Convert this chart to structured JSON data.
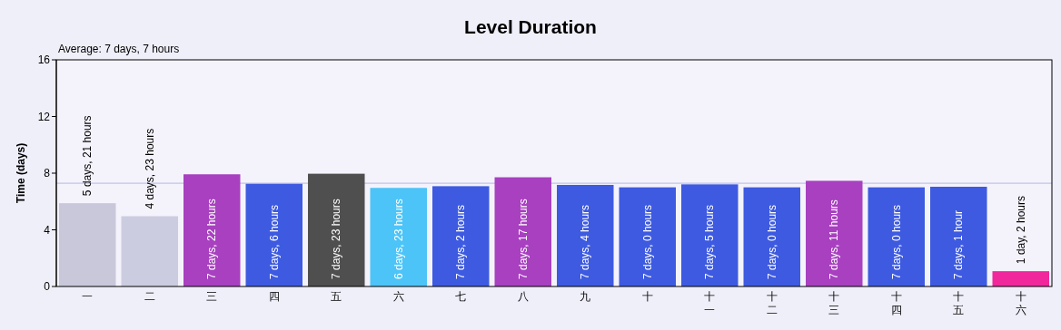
{
  "chart_data": {
    "type": "bar",
    "title": "Level Duration",
    "ylabel": "Time (days)",
    "categories": [
      "一",
      "二",
      "三",
      "四",
      "五",
      "六",
      "七",
      "八",
      "九",
      "十",
      "十一",
      "十二",
      "十三",
      "十四",
      "十五",
      "十六"
    ],
    "values": [
      5.88,
      4.96,
      7.92,
      7.25,
      7.96,
      6.96,
      7.08,
      7.71,
      7.17,
      7.0,
      7.21,
      7.0,
      7.46,
      7.0,
      7.04,
      1.08
    ],
    "colors": [
      "#c8c8da",
      "#cccce0",
      "#a840c0",
      "#3d5ae0",
      "#4f4f4f",
      "#4cc4f8",
      "#3d5ae0",
      "#a840c0",
      "#3d5ae0",
      "#3d5ae0",
      "#3d5ae0",
      "#3d5ae0",
      "#a840c0",
      "#3d5ae0",
      "#3d5ae0",
      "#f0289c"
    ],
    "ylim": [
      0,
      16
    ],
    "yticks": [
      0,
      4,
      8,
      12,
      16
    ],
    "grid": false,
    "ref_lines": [
      {
        "axis": "y",
        "value": 7.29,
        "color": "#b8b8e0"
      }
    ],
    "annotations": [
      "Average: 7 days, 7 hours",
      {
        "text": "5 days, 21 hours",
        "x": "一",
        "y": 5.88
      },
      {
        "text": "4 days, 23 hours",
        "x": "二",
        "y": 4.96
      },
      {
        "text": "7 days, 22 hours",
        "x": "三",
        "y": 7.92
      },
      {
        "text": "7 days, 6 hours",
        "x": "四",
        "y": 7.25
      },
      {
        "text": "7 days, 23 hours",
        "x": "五",
        "y": 7.96
      },
      {
        "text": "6 days, 23 hours",
        "x": "六",
        "y": 6.96
      },
      {
        "text": "7 days, 2 hours",
        "x": "七",
        "y": 7.08
      },
      {
        "text": "7 days, 17 hours",
        "x": "八",
        "y": 7.71
      },
      {
        "text": "7 days, 4 hours",
        "x": "九",
        "y": 7.17
      },
      {
        "text": "7 days, 0 hours",
        "x": "十",
        "y": 7.0
      },
      {
        "text": "7 days, 5 hours",
        "x": "十一",
        "y": 7.21
      },
      {
        "text": "7 days, 0 hours",
        "x": "十二",
        "y": 7.0
      },
      {
        "text": "7 days, 11 hours",
        "x": "十三",
        "y": 7.46
      },
      {
        "text": "7 days, 0 hours",
        "x": "十四",
        "y": 7.0
      },
      {
        "text": "7 days, 1 hour",
        "x": "十五",
        "y": 7.04
      },
      {
        "text": "1 day, 2 hours",
        "x": "十六",
        "y": 1.08
      }
    ]
  }
}
